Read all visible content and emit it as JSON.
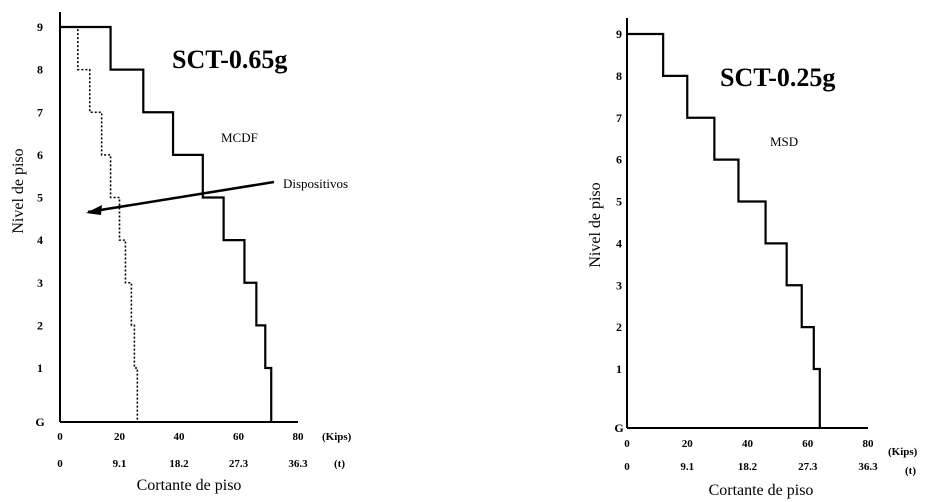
{
  "chart_data": [
    {
      "type": "line",
      "title": "SCT-0.65g",
      "xlabel": "Cortante de piso",
      "ylabel": "Nivel de piso",
      "x_unit_primary": "(Kips)",
      "x_unit_secondary": "(t)",
      "xlim": [
        0,
        80
      ],
      "ylim": [
        "G",
        9
      ],
      "x_ticks_kips": [
        "0",
        "20",
        "40",
        "60",
        "80"
      ],
      "x_ticks_t": [
        "0",
        "9.1",
        "18.2",
        "27.3",
        "36.3"
      ],
      "y_ticks": [
        "G",
        "1",
        "2",
        "3",
        "4",
        "5",
        "6",
        "7",
        "8",
        "9"
      ],
      "series": [
        {
          "name": "MCDF",
          "style": "solid",
          "levels": [
            "G",
            "1",
            "2",
            "3",
            "4",
            "5",
            "6",
            "7",
            "8",
            "9"
          ],
          "values": [
            71,
            71,
            69,
            66,
            62,
            55,
            48,
            38,
            28,
            17
          ]
        },
        {
          "name": "Dispositivos",
          "style": "dotted",
          "levels": [
            "G",
            "1",
            "2",
            "3",
            "4",
            "5",
            "6",
            "7",
            "8",
            "9"
          ],
          "values": [
            26,
            26,
            25,
            24,
            22,
            20,
            17,
            14,
            10,
            6
          ]
        }
      ],
      "annotations": [
        "MCDF",
        "Dispositivos"
      ]
    },
    {
      "type": "line",
      "title": "SCT-0.25g",
      "xlabel": "Cortante de piso",
      "ylabel": "Nivel de piso",
      "x_unit_primary": "(Kips)",
      "x_unit_secondary": "(t)",
      "xlim": [
        0,
        80
      ],
      "ylim": [
        "G",
        9
      ],
      "x_ticks_kips": [
        "0",
        "20",
        "40",
        "60",
        "80"
      ],
      "x_ticks_t": [
        "0",
        "9.1",
        "18.2",
        "27.3",
        "36.3"
      ],
      "y_ticks": [
        "G",
        "1",
        "2",
        "3",
        "4",
        "5",
        "6",
        "7",
        "8",
        "9"
      ],
      "series": [
        {
          "name": "MSD",
          "style": "solid",
          "levels": [
            "G",
            "1",
            "2",
            "3",
            "4",
            "5",
            "6",
            "7",
            "8",
            "9"
          ],
          "values": [
            64,
            64,
            62,
            58,
            53,
            46,
            37,
            29,
            20,
            12
          ]
        }
      ],
      "annotations": [
        "MSD"
      ]
    }
  ]
}
